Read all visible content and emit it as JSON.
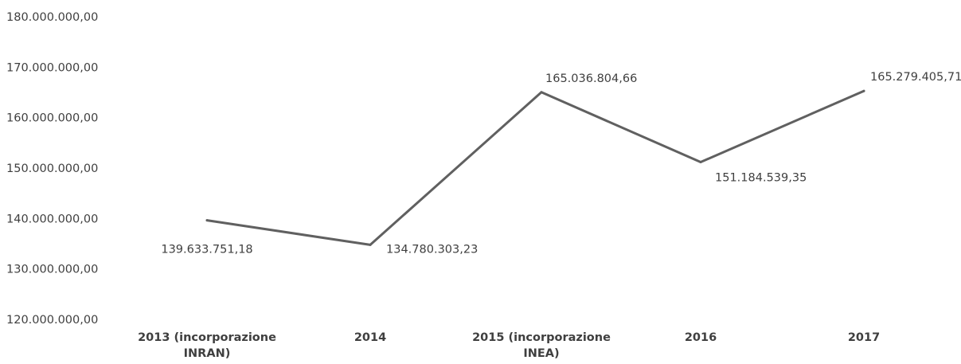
{
  "chart_data": {
    "type": "line",
    "title": "",
    "xlabel": "",
    "ylabel": "",
    "ylim": [
      120000000,
      180000000
    ],
    "grid": false,
    "legend": "none",
    "y_tick_values": [
      180000000,
      170000000,
      160000000,
      150000000,
      140000000,
      130000000,
      120000000
    ],
    "y_tick_labels": [
      "180.000.000,00",
      "170.000.000,00",
      "160.000.000,00",
      "150.000.000,00",
      "140.000.000,00",
      "130.000.000,00",
      "120.000.000,00"
    ],
    "categories": [
      [
        "2013 (incorporazione",
        "INRAN)"
      ],
      [
        "2014"
      ],
      [
        "2015 (incorporazione",
        "INEA)"
      ],
      [
        "2016"
      ],
      [
        "2017"
      ]
    ],
    "series": [
      {
        "values": [
          139633751.18,
          134780303.23,
          165036804.66,
          151184539.35,
          165279405.71
        ],
        "labels": [
          "139.633.751,18",
          "134.780.303,23",
          "165.036.804,66",
          "151.184.539,35",
          "165.279.405,71"
        ],
        "color": "#606060"
      }
    ]
  }
}
